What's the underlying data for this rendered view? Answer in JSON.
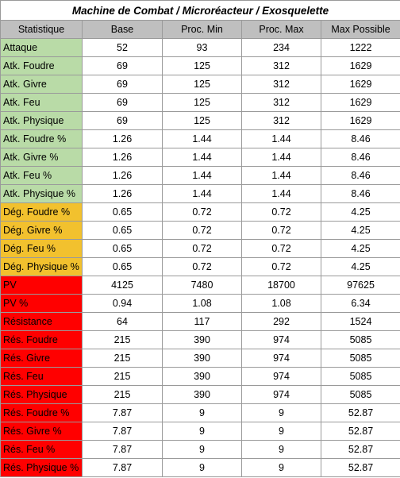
{
  "title": "Machine de Combat / Microréacteur / Exosquelette",
  "headers": [
    "Statistique",
    "Base",
    "Proc. Min",
    "Proc. Max",
    "Max Possible"
  ],
  "colors": {
    "green": "#b9dba7",
    "orange": "#f2c12e",
    "red": "#ff0000",
    "header": "#bfbfbf"
  },
  "rows": [
    {
      "stat": "Attaque",
      "base": "52",
      "min": "93",
      "max": "234",
      "possible": "1222",
      "color": "green"
    },
    {
      "stat": "Atk. Foudre",
      "base": "69",
      "min": "125",
      "max": "312",
      "possible": "1629",
      "color": "green"
    },
    {
      "stat": "Atk. Givre",
      "base": "69",
      "min": "125",
      "max": "312",
      "possible": "1629",
      "color": "green"
    },
    {
      "stat": "Atk. Feu",
      "base": "69",
      "min": "125",
      "max": "312",
      "possible": "1629",
      "color": "green"
    },
    {
      "stat": "Atk. Physique",
      "base": "69",
      "min": "125",
      "max": "312",
      "possible": "1629",
      "color": "green"
    },
    {
      "stat": "Atk. Foudre %",
      "base": "1.26",
      "min": "1.44",
      "max": "1.44",
      "possible": "8.46",
      "color": "green"
    },
    {
      "stat": "Atk. Givre %",
      "base": "1.26",
      "min": "1.44",
      "max": "1.44",
      "possible": "8.46",
      "color": "green"
    },
    {
      "stat": "Atk. Feu %",
      "base": "1.26",
      "min": "1.44",
      "max": "1.44",
      "possible": "8.46",
      "color": "green"
    },
    {
      "stat": "Atk. Physique %",
      "base": "1.26",
      "min": "1.44",
      "max": "1.44",
      "possible": "8.46",
      "color": "green"
    },
    {
      "stat": "Dég. Foudre %",
      "base": "0.65",
      "min": "0.72",
      "max": "0.72",
      "possible": "4.25",
      "color": "orange"
    },
    {
      "stat": "Dég. Givre %",
      "base": "0.65",
      "min": "0.72",
      "max": "0.72",
      "possible": "4.25",
      "color": "orange"
    },
    {
      "stat": "Dég. Feu %",
      "base": "0.65",
      "min": "0.72",
      "max": "0.72",
      "possible": "4.25",
      "color": "orange"
    },
    {
      "stat": "Dég. Physique %",
      "base": "0.65",
      "min": "0.72",
      "max": "0.72",
      "possible": "4.25",
      "color": "orange"
    },
    {
      "stat": "PV",
      "base": "4125",
      "min": "7480",
      "max": "18700",
      "possible": "97625",
      "color": "red"
    },
    {
      "stat": "PV %",
      "base": "0.94",
      "min": "1.08",
      "max": "1.08",
      "possible": "6.34",
      "color": "red"
    },
    {
      "stat": "Résistance",
      "base": "64",
      "min": "117",
      "max": "292",
      "possible": "1524",
      "color": "red"
    },
    {
      "stat": "Rés. Foudre",
      "base": "215",
      "min": "390",
      "max": "974",
      "possible": "5085",
      "color": "red"
    },
    {
      "stat": "Rés. Givre",
      "base": "215",
      "min": "390",
      "max": "974",
      "possible": "5085",
      "color": "red"
    },
    {
      "stat": "Rés. Feu",
      "base": "215",
      "min": "390",
      "max": "974",
      "possible": "5085",
      "color": "red"
    },
    {
      "stat": "Rés. Physique",
      "base": "215",
      "min": "390",
      "max": "974",
      "possible": "5085",
      "color": "red"
    },
    {
      "stat": "Rés. Foudre %",
      "base": "7.87",
      "min": "9",
      "max": "9",
      "possible": "52.87",
      "color": "red"
    },
    {
      "stat": "Rés. Givre %",
      "base": "7.87",
      "min": "9",
      "max": "9",
      "possible": "52.87",
      "color": "red"
    },
    {
      "stat": "Rés. Feu %",
      "base": "7.87",
      "min": "9",
      "max": "9",
      "possible": "52.87",
      "color": "red"
    },
    {
      "stat": "Rés. Physique %",
      "base": "7.87",
      "min": "9",
      "max": "9",
      "possible": "52.87",
      "color": "red"
    }
  ]
}
